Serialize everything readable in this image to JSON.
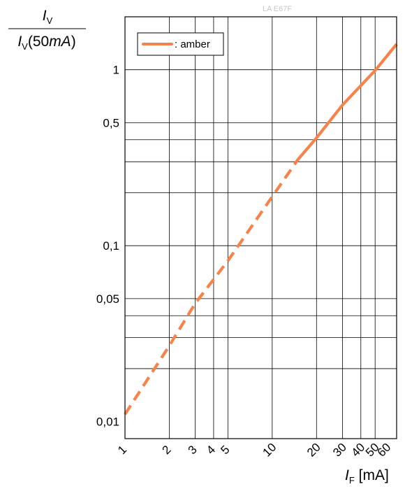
{
  "chart_data": {
    "type": "line",
    "watermark": "LA E67F",
    "ylabel": {
      "num_symbol": "I",
      "num_sub": "V",
      "den_symbol": "I",
      "den_sub": "V",
      "den_open": "(50",
      "den_unit": "mA",
      "den_close": ")"
    },
    "xlabel": {
      "symbol": "I",
      "sub": "F",
      "unit": " [mA]"
    },
    "x_scale": "log",
    "y_scale": "log",
    "xlim": [
      1,
      70
    ],
    "ylim": [
      0.008,
      2
    ],
    "x_ticks": [
      {
        "value": 1,
        "label": "1"
      },
      {
        "value": 2,
        "label": "2"
      },
      {
        "value": 3,
        "label": "3"
      },
      {
        "value": 4,
        "label": "4"
      },
      {
        "value": 5,
        "label": "5"
      },
      {
        "value": 10,
        "label": "10"
      },
      {
        "value": 20,
        "label": "20"
      },
      {
        "value": 30,
        "label": "30"
      },
      {
        "value": 40,
        "label": "40"
      },
      {
        "value": 50,
        "label": "50"
      },
      {
        "value": 60,
        "label": "60"
      }
    ],
    "y_ticks": [
      {
        "value": 0.01,
        "label": "0,01"
      },
      {
        "value": 0.05,
        "label": "0,05"
      },
      {
        "value": 0.1,
        "label": "0,1"
      },
      {
        "value": 0.5,
        "label": "0,5"
      },
      {
        "value": 1,
        "label": "1"
      }
    ],
    "x_grid": [
      1,
      2,
      3,
      4,
      5,
      10,
      20,
      30,
      40,
      50
    ],
    "y_grid": [
      0.02,
      0.03,
      0.04,
      0.05,
      0.1,
      0.2,
      0.3,
      0.4,
      0.5,
      1
    ],
    "grid": true,
    "legend": {
      "position": "top-left",
      "entries": [
        {
          "label": ": amber",
          "color": "#f7834a"
        }
      ]
    },
    "series": [
      {
        "name": "amber",
        "color": "#f7834a",
        "dashed_segment": [
          {
            "x": 1,
            "y": 0.011
          },
          {
            "x": 2,
            "y": 0.027
          },
          {
            "x": 3,
            "y": 0.047
          },
          {
            "x": 5,
            "y": 0.082
          },
          {
            "x": 10,
            "y": 0.19
          },
          {
            "x": 15,
            "y": 0.31
          }
        ],
        "solid_segment": [
          {
            "x": 15,
            "y": 0.31
          },
          {
            "x": 20,
            "y": 0.41
          },
          {
            "x": 30,
            "y": 0.63
          },
          {
            "x": 50,
            "y": 0.99
          },
          {
            "x": 70,
            "y": 1.4
          }
        ]
      }
    ]
  }
}
